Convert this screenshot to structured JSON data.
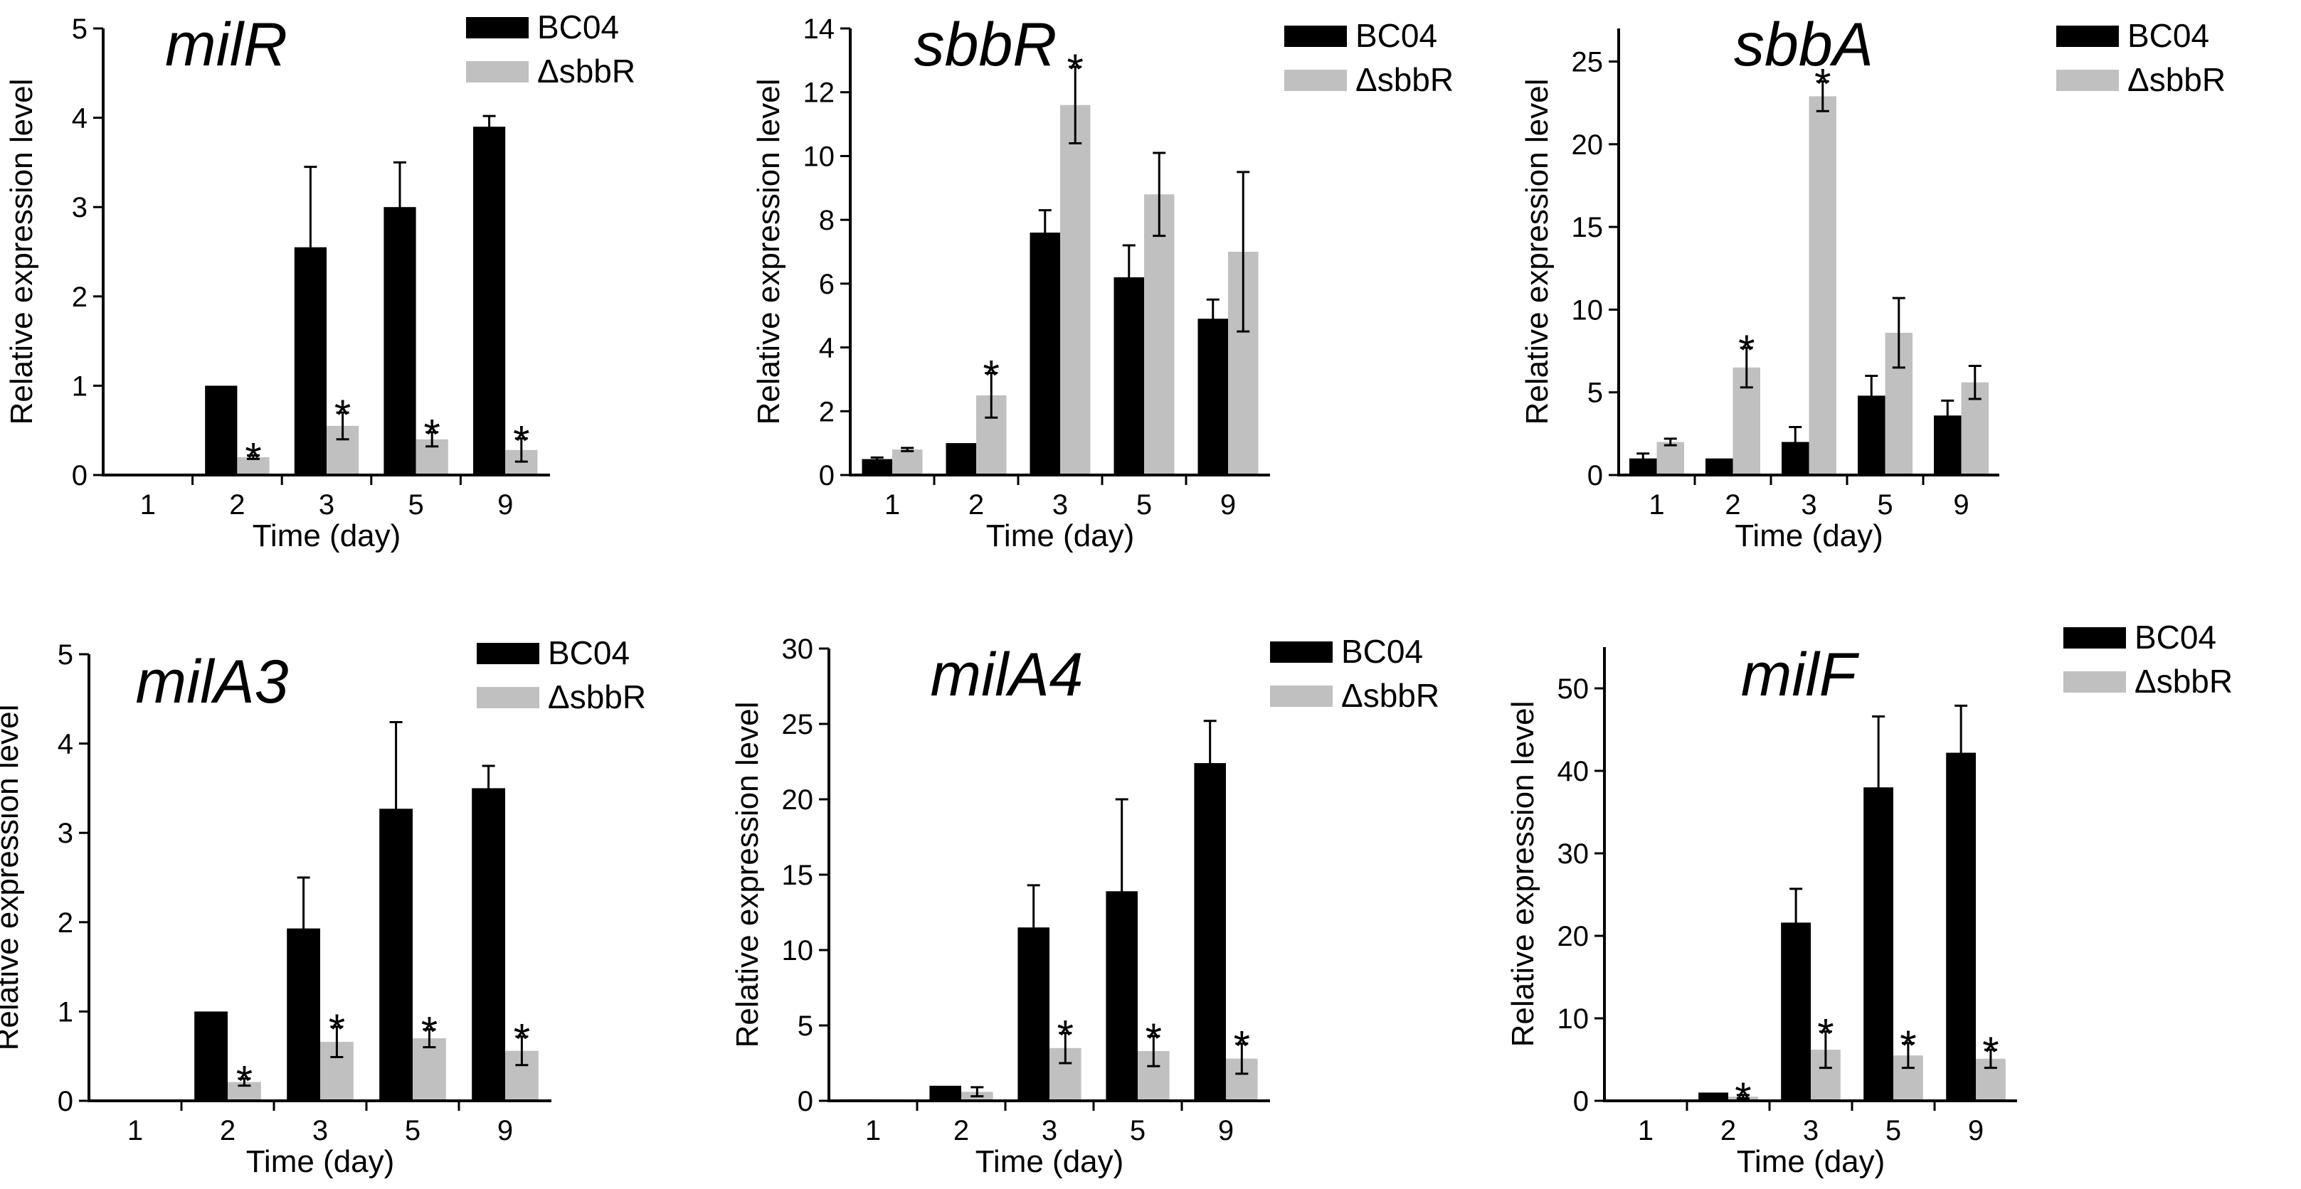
{
  "colors": {
    "bc04": "#000000",
    "mutant": "#c0c0c0",
    "axis": "#000000"
  },
  "chart_data": [
    {
      "type": "bar",
      "title": "milR",
      "xlabel": "Time (day)",
      "ylabel": "Relative expression level",
      "categories": [
        "1",
        "2",
        "3",
        "5",
        "9"
      ],
      "ylim": [
        0,
        5
      ],
      "yticks": [
        0,
        1,
        2,
        3,
        4,
        5
      ],
      "ytick_labels": [
        "0",
        "1",
        "2",
        "3",
        "4",
        "5"
      ],
      "significance_label": "*",
      "series": [
        {
          "name": "BC04",
          "values": [
            0,
            1,
            2.55,
            3.0,
            3.9
          ],
          "errors": [
            0,
            0,
            0.9,
            0.5,
            0.12
          ],
          "sig": [
            false,
            false,
            false,
            false,
            false
          ]
        },
        {
          "name": "ΔsbbR",
          "values": [
            0,
            0.2,
            0.55,
            0.4,
            0.28
          ],
          "errors": [
            0,
            0.02,
            0.15,
            0.08,
            0.13
          ],
          "sig": [
            false,
            true,
            true,
            true,
            true
          ]
        }
      ]
    },
    {
      "type": "bar",
      "title": "sbbR",
      "xlabel": "Time (day)",
      "ylabel": "Relative expression level",
      "categories": [
        "1",
        "2",
        "3",
        "5",
        "9"
      ],
      "ylim": [
        0,
        14
      ],
      "yticks": [
        0,
        2,
        4,
        6,
        8,
        10,
        12,
        14
      ],
      "ytick_labels": [
        "0",
        "2",
        "4",
        "6",
        "8",
        "10",
        "12",
        "14"
      ],
      "significance_label": "*",
      "series": [
        {
          "name": "BC04",
          "values": [
            0.5,
            1.0,
            7.6,
            6.2,
            4.9
          ],
          "errors": [
            0.05,
            0,
            0.7,
            1.0,
            0.6
          ],
          "sig": [
            false,
            false,
            false,
            false,
            false
          ]
        },
        {
          "name": "ΔsbbR",
          "values": [
            0.8,
            2.5,
            11.6,
            8.8,
            7.0
          ],
          "errors": [
            0.05,
            0.7,
            1.2,
            1.3,
            2.5
          ],
          "sig": [
            false,
            true,
            true,
            false,
            false
          ]
        }
      ]
    },
    {
      "type": "bar",
      "title": "sbbA",
      "xlabel": "Time (day)",
      "ylabel": "Relative expression level",
      "categories": [
        "1",
        "2",
        "3",
        "5",
        "9"
      ],
      "ylim": [
        0,
        27
      ],
      "yticks": [
        0,
        5,
        10,
        15,
        20,
        25
      ],
      "ytick_labels": [
        "0",
        "5",
        "10",
        "15",
        "20",
        "25"
      ],
      "significance_label": "*",
      "series": [
        {
          "name": "BC04",
          "values": [
            1.0,
            1.0,
            2.0,
            4.8,
            3.6
          ],
          "errors": [
            0.3,
            0,
            0.9,
            1.2,
            0.9
          ],
          "sig": [
            false,
            false,
            false,
            false,
            false
          ]
        },
        {
          "name": "ΔsbbR",
          "values": [
            2.0,
            6.5,
            22.9,
            8.6,
            5.6
          ],
          "errors": [
            0.2,
            1.2,
            0.9,
            2.1,
            1.0
          ],
          "sig": [
            false,
            true,
            true,
            false,
            false
          ]
        }
      ]
    },
    {
      "type": "bar",
      "title": "milA3",
      "xlabel": "Time (day)",
      "ylabel": "Relative expression level",
      "categories": [
        "1",
        "2",
        "3",
        "5",
        "9"
      ],
      "ylim": [
        0,
        5
      ],
      "yticks": [
        0,
        1,
        2,
        3,
        4,
        5
      ],
      "ytick_labels": [
        "0",
        "1",
        "2",
        "3",
        "4",
        "5"
      ],
      "significance_label": "*",
      "series": [
        {
          "name": "BC04",
          "values": [
            0,
            1.0,
            1.93,
            3.27,
            3.5
          ],
          "errors": [
            0,
            0,
            0.57,
            0.97,
            0.25
          ],
          "sig": [
            false,
            false,
            false,
            false,
            false
          ]
        },
        {
          "name": "ΔsbbR",
          "values": [
            0,
            0.21,
            0.66,
            0.7,
            0.56
          ],
          "errors": [
            0,
            0.04,
            0.17,
            0.1,
            0.16
          ],
          "sig": [
            false,
            true,
            true,
            true,
            true
          ]
        }
      ]
    },
    {
      "type": "bar",
      "title": "milA4",
      "xlabel": "Time (day)",
      "ylabel": "Relative expression level",
      "categories": [
        "1",
        "2",
        "3",
        "5",
        "9"
      ],
      "ylim": [
        0,
        30
      ],
      "yticks": [
        0,
        5,
        10,
        15,
        20,
        25,
        30
      ],
      "ytick_labels": [
        "0",
        "5",
        "10",
        "15",
        "20",
        "25",
        "30"
      ],
      "significance_label": "*",
      "series": [
        {
          "name": "BC04",
          "values": [
            0.1,
            1.0,
            11.5,
            13.9,
            22.4
          ],
          "errors": [
            0,
            0,
            2.8,
            6.1,
            2.8
          ],
          "sig": [
            false,
            false,
            false,
            false,
            false
          ]
        },
        {
          "name": "ΔsbbR",
          "values": [
            0.1,
            0.6,
            3.5,
            3.3,
            2.8
          ],
          "errors": [
            0,
            0.3,
            1.0,
            1.0,
            1.0
          ],
          "sig": [
            false,
            false,
            true,
            true,
            true
          ]
        }
      ]
    },
    {
      "type": "bar",
      "title": "milF",
      "xlabel": "Time (day)",
      "ylabel": "Relative expression level",
      "categories": [
        "1",
        "2",
        "3",
        "5",
        "9"
      ],
      "ylim": [
        0,
        55
      ],
      "yticks": [
        0,
        10,
        20,
        30,
        40,
        50
      ],
      "ytick_labels": [
        "0",
        "10",
        "20",
        "30",
        "40",
        "50"
      ],
      "significance_label": "*",
      "series": [
        {
          "name": "BC04",
          "values": [
            0,
            1.0,
            21.6,
            38.0,
            42.2
          ],
          "errors": [
            0,
            0,
            4.1,
            8.6,
            5.7
          ],
          "sig": [
            false,
            false,
            false,
            false,
            false
          ]
        },
        {
          "name": "ΔsbbR",
          "values": [
            0,
            0.5,
            6.2,
            5.5,
            5.1
          ],
          "errors": [
            0,
            0.2,
            2.2,
            1.5,
            1.1
          ],
          "sig": [
            false,
            true,
            true,
            true,
            true
          ]
        }
      ]
    }
  ]
}
